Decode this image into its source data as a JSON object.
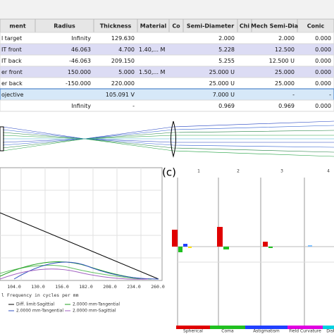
{
  "table": {
    "headers": [
      "ment",
      "Radius",
      "Thickness",
      "Material",
      "Co",
      "Semi-Diameter",
      "Chi",
      "Mech Semi-Dia",
      "Conic"
    ],
    "rows": [
      [
        "l target",
        "Infinity",
        "129.630",
        null,
        null,
        "2.000",
        null,
        "2.000",
        "0.000"
      ],
      [
        "IT front",
        "46.063",
        "4.700",
        "1.40,... M",
        null,
        "5.228",
        null,
        "12.500",
        "0.000"
      ],
      [
        "IT back",
        "-46.063",
        "209.150",
        null,
        null,
        "5.255",
        null,
        "12.500 U",
        "0.000"
      ],
      [
        "er front",
        "150.000",
        "5.000",
        "1.50,... M",
        null,
        "25.000 U",
        null,
        "25.000",
        "0.000"
      ],
      [
        "er back",
        "-150.000",
        "220.000",
        null,
        null,
        "25.000 U",
        null,
        "25.000",
        "0.000"
      ],
      [
        "ojective",
        null,
        "105.091 V",
        null,
        null,
        "7.000 U",
        null,
        "-",
        "-"
      ],
      [
        null,
        "Infinity",
        "-",
        null,
        null,
        "0.969",
        null,
        "0.969",
        "0.000"
      ]
    ]
  },
  "mtf": {
    "x_tick_labels": [
      "104.0",
      "130.0",
      "156.0",
      "182.0",
      "208.0",
      "234.0",
      "260.0"
    ],
    "x_axis_label": "l Frequency in cycles per mm",
    "legend": [
      "Diff. limit-Sagittial",
      "2.0000 mm-Tangential",
      "2.0000 mm-Tangential",
      "2.0000 mm-Sagittial"
    ]
  },
  "seidel": {
    "panel_label": "(c)",
    "columns": [
      "1",
      "2",
      "3",
      "4"
    ],
    "legend": [
      "Spherical",
      "Coma",
      "Astigmatism",
      "Field Curvature",
      "Disto"
    ]
  }
}
